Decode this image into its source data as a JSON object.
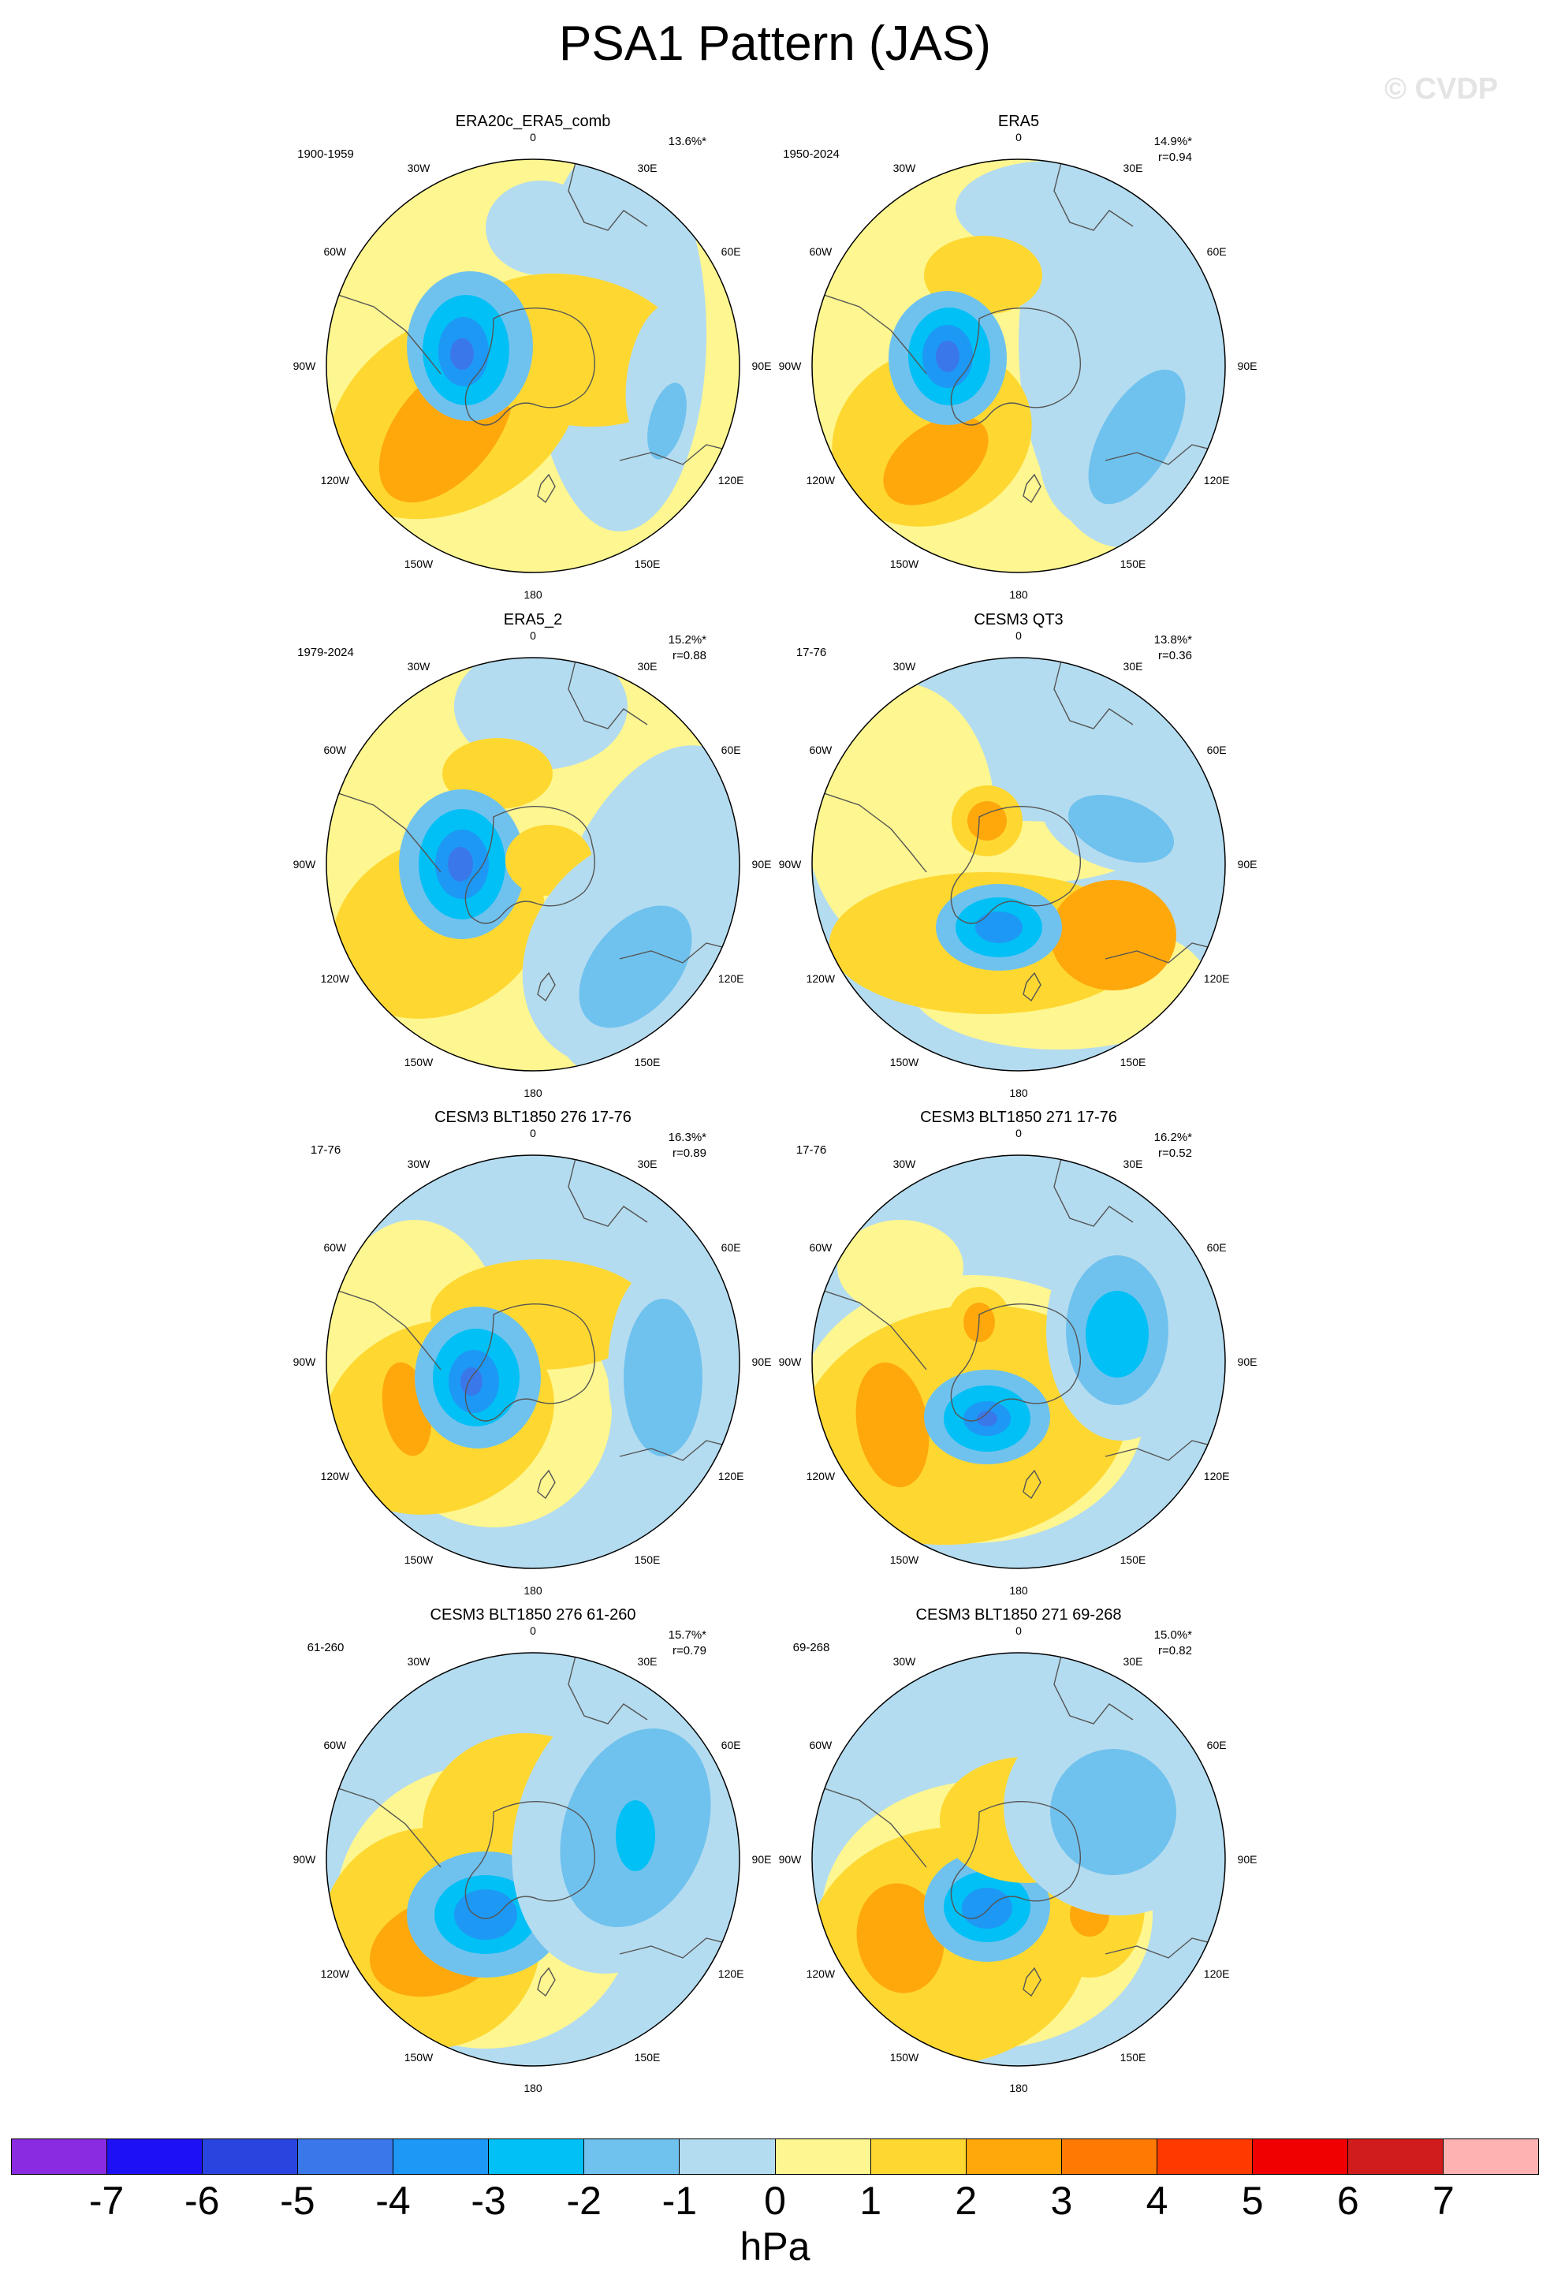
{
  "title": "PSA1 Pattern (JAS)",
  "watermark": "© CVDP",
  "panels": [
    {
      "name": "ERA20c_ERA5_comb",
      "period": "1900-1959",
      "pct": "13.6%*",
      "r": ""
    },
    {
      "name": "ERA5",
      "period": "1950-2024",
      "pct": "14.9%*",
      "r": "r=0.94"
    },
    {
      "name": "ERA5_2",
      "period": "1979-2024",
      "pct": "15.2%*",
      "r": "r=0.88"
    },
    {
      "name": "CESM3 QT3",
      "period": "17-76",
      "pct": "13.8%*",
      "r": "r=0.36"
    },
    {
      "name": "CESM3 BLT1850 276 17-76",
      "period": "17-76",
      "pct": "16.3%*",
      "r": "r=0.89"
    },
    {
      "name": "CESM3 BLT1850 271 17-76",
      "period": "17-76",
      "pct": "16.2%*",
      "r": "r=0.52"
    },
    {
      "name": "CESM3 BLT1850 276 61-260",
      "period": "61-260",
      "pct": "15.7%*",
      "r": "r=0.79"
    },
    {
      "name": "CESM3 BLT1850 271 69-268",
      "period": "69-268",
      "pct": "15.0%*",
      "r": "r=0.82"
    }
  ],
  "lon_labels": [
    "0",
    "30E",
    "60E",
    "90E",
    "120E",
    "150E",
    "180",
    "150W",
    "120W",
    "90W",
    "60W",
    "30W"
  ],
  "colorbar": {
    "units": "hPa",
    "labels": [
      "-7",
      "-6",
      "-5",
      "-4",
      "-3",
      "-2",
      "-1",
      "0",
      "1",
      "2",
      "3",
      "4",
      "5",
      "6",
      "7"
    ],
    "colors": [
      "#8a2be2",
      "#1e10f5",
      "#2a44e0",
      "#3a78ea",
      "#1e98f5",
      "#00c0f5",
      "#70c2ee",
      "#b4dcf0",
      "#fef690",
      "#fed831",
      "#fea80c",
      "#fe7a02",
      "#fe3a00",
      "#f00000",
      "#d01c1c",
      "#ffb2b2"
    ]
  }
}
